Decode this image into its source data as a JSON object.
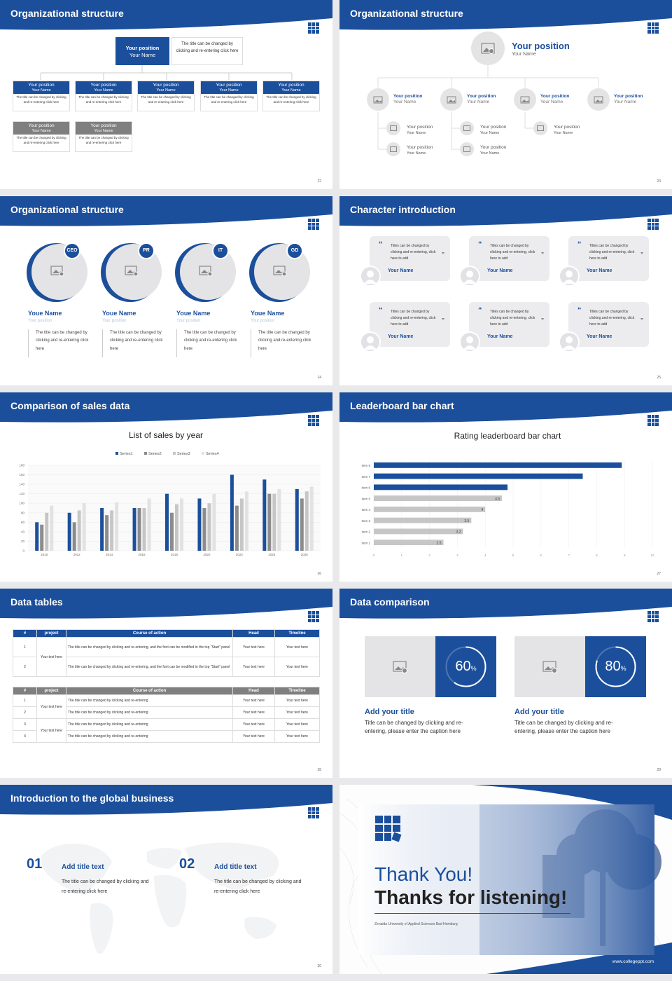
{
  "slides": [
    {
      "title": "Organizational structure",
      "page": "22",
      "top": {
        "title": "Your position",
        "name": "Your Name",
        "desc": "The title can be changed by clicking and re-entering click here"
      },
      "boxes": [
        {
          "title": "Your position",
          "name": "Your Name",
          "desc": "The title can be changed by clicking and re-entering click here"
        },
        {
          "title": "Your position",
          "name": "Your Name",
          "desc": "The title can be changed by clicking and re-entering click here"
        },
        {
          "title": "Your position",
          "name": "Your Name",
          "desc": "The title can be changed by clicking and re-entering click here"
        },
        {
          "title": "Your position",
          "name": "Your Name",
          "desc": "The title can be changed by clicking and re-entering click here"
        },
        {
          "title": "Your position",
          "name": "Your Name",
          "desc": "The title can be changed by clicking and re-entering click here"
        },
        {
          "title": "Your position",
          "name": "Your Name",
          "desc": "The title can be changed by clicking and re-entering click here"
        },
        {
          "title": "Your position",
          "name": "Your Name",
          "desc": "The title can be changed by clicking and re-entering click here"
        }
      ]
    },
    {
      "title": "Organizational structure",
      "page": "23",
      "top": {
        "title": "Your position",
        "name": "Your Name"
      },
      "level2": [
        {
          "title": "Your position",
          "name": "Your Name"
        },
        {
          "title": "Your position",
          "name": "Your Name"
        },
        {
          "title": "Your position",
          "name": "Your Name"
        },
        {
          "title": "Your position",
          "name": "Your Name"
        }
      ],
      "level3": [
        {
          "title": "Your position",
          "name": "Your Name"
        },
        {
          "title": "Your position",
          "name": "Your Name"
        },
        {
          "title": "Your position",
          "name": "Your Name"
        },
        {
          "title": "Your position",
          "name": "Your Name"
        },
        {
          "title": "Your position",
          "name": "Your Name"
        }
      ]
    },
    {
      "title": "Organizational structure",
      "page": "24",
      "people": [
        {
          "badge": "CEO",
          "name": "Youe Name",
          "position": "Your position",
          "desc": "The title can be changed by clicking and re-entering click here"
        },
        {
          "badge": "PR",
          "name": "Youe Name",
          "position": "Your position",
          "desc": "The title can be changed by clicking and re-entering click here"
        },
        {
          "badge": "IT",
          "name": "Youe Name",
          "position": "Your position",
          "desc": "The title can be changed by clicking and re-entering click here"
        },
        {
          "badge": "GD",
          "name": "Youe Name",
          "position": "Your position",
          "desc": "The title can be changed by clicking and re-entering click here"
        }
      ]
    },
    {
      "title": "Character introduction",
      "page": "25",
      "quote_open": "“",
      "quote_close": "”",
      "cards": [
        {
          "text": "Titles can be changed by clicking and re-entering, click here to add",
          "name": "Your Name"
        },
        {
          "text": "Titles can be changed by clicking and re-entering, click here to add",
          "name": "Your Name"
        },
        {
          "text": "Titles can be changed by clicking and re-entering, click here to add",
          "name": "Your Name"
        },
        {
          "text": "Titles can be changed by clicking and re-entering, click here to add",
          "name": "Your Name"
        },
        {
          "text": "Titles can be changed by clicking and re-entering, click here to add",
          "name": "Your Name"
        },
        {
          "text": "Titles can be changed by clicking and re-entering, click here to add",
          "name": "Your Name"
        }
      ]
    },
    {
      "title": "Comparison of sales data",
      "page": "26"
    },
    {
      "title": "Leaderboard bar chart",
      "page": "27"
    },
    {
      "title": "Data tables",
      "page": "28",
      "table1": {
        "headers": [
          "#",
          "project",
          "Course of action",
          "Head",
          "Timeline"
        ],
        "rows": [
          {
            "n": "1",
            "action": "The title can be changed by clicking and re-entering, and the font can be modified in the top \"Start\" panel",
            "head": "Your text here",
            "time": "Your text here"
          },
          {
            "n": "2",
            "action": "The title can be changed by clicking and re-entering, and the font can be modified in the top \"Start\" panel",
            "head": "Your text here",
            "time": "Your text here"
          }
        ],
        "project": "Your text here"
      },
      "table2": {
        "headers": [
          "#",
          "project",
          "Course of action",
          "Head",
          "Timeline"
        ],
        "rows": [
          {
            "n": "1",
            "action": "The title can be changed by clicking and re-entering",
            "head": "Your text here",
            "time": "Your text here"
          },
          {
            "n": "2",
            "action": "The title can be changed by clicking and re-entering",
            "head": "Your text here",
            "time": "Your text here"
          },
          {
            "n": "3",
            "action": "The title can be changed by clicking and re-entering",
            "head": "Your text here",
            "time": "Your text here"
          },
          {
            "n": "4",
            "action": "The title can be changed by clicking and re-entering",
            "head": "Your text here",
            "time": "Your text here"
          }
        ],
        "project1": "Your text here",
        "project2": "Your text here"
      }
    },
    {
      "title": "Data comparison",
      "page": "29",
      "items": [
        {
          "value": "60",
          "unit": "%",
          "pct": 0.6,
          "title": "Add your title",
          "desc": "Title can be changed by clicking and re-entering, please enter the caption here"
        },
        {
          "value": "80",
          "unit": "%",
          "pct": 0.8,
          "title": "Add your title",
          "desc": "Title can be changed by clicking and re-entering, please enter the caption here"
        }
      ]
    },
    {
      "title": "Introduction to the global business",
      "page": "30",
      "items": [
        {
          "num": "01",
          "title": "Add title text",
          "desc": "The title can be changed by clicking and re-entering click here"
        },
        {
          "num": "02",
          "title": "Add title text",
          "desc": "The title can be changed by clicking and re-entering click here"
        }
      ]
    },
    {
      "thanks1": "Thank You!",
      "thanks2": "Thanks for listening!",
      "sub": "Zenaida University of Applied Sciences Bad Homburg",
      "url": "www.collegeppt.com"
    }
  ],
  "chart_data": [
    {
      "type": "bar",
      "title": "List of sales by year",
      "categories": [
        "2010",
        "2012",
        "2014",
        "2016",
        "2018",
        "2020",
        "2022",
        "2024",
        "2026"
      ],
      "series": [
        {
          "name": "Series1",
          "color": "#1b4f9c",
          "values": [
            60,
            80,
            90,
            90,
            120,
            110,
            160,
            150,
            130
          ]
        },
        {
          "name": "Series2",
          "color": "#8c8c8c",
          "values": [
            55,
            60,
            75,
            90,
            80,
            90,
            95,
            120,
            110
          ]
        },
        {
          "name": "Series3",
          "color": "#c6c6c6",
          "values": [
            80,
            85,
            85,
            90,
            98,
            100,
            110,
            120,
            125
          ]
        },
        {
          "name": "Series4",
          "color": "#e2e2e2",
          "values": [
            95,
            100,
            102,
            110,
            110,
            120,
            125,
            130,
            135
          ]
        }
      ],
      "ylim": [
        0,
        180
      ],
      "yticks": [
        0,
        20,
        40,
        60,
        80,
        100,
        120,
        140,
        160,
        180
      ],
      "legend": "top"
    },
    {
      "type": "bar",
      "orientation": "horizontal",
      "title": "Rating leaderboard bar chart",
      "categories": [
        "Item 1",
        "Item 2",
        "Item 3",
        "Item 4",
        "Item 5",
        "Item 6",
        "Item 7",
        "Item 8"
      ],
      "values": [
        2.5,
        3.2,
        3.5,
        4,
        4.6,
        4.8,
        7.5,
        8.9
      ],
      "labels": [
        "2.5",
        "3.2",
        "3.5",
        "4",
        "4.6",
        "",
        "",
        ""
      ],
      "colors": [
        "#c6c6c6",
        "#c6c6c6",
        "#c6c6c6",
        "#c6c6c6",
        "#c6c6c6",
        "#1b4f9c",
        "#1b4f9c",
        "#1b4f9c"
      ],
      "xlim": [
        0,
        10
      ],
      "xticks": [
        0,
        1,
        2,
        3,
        4,
        5,
        6,
        7,
        8,
        9,
        10
      ]
    }
  ]
}
